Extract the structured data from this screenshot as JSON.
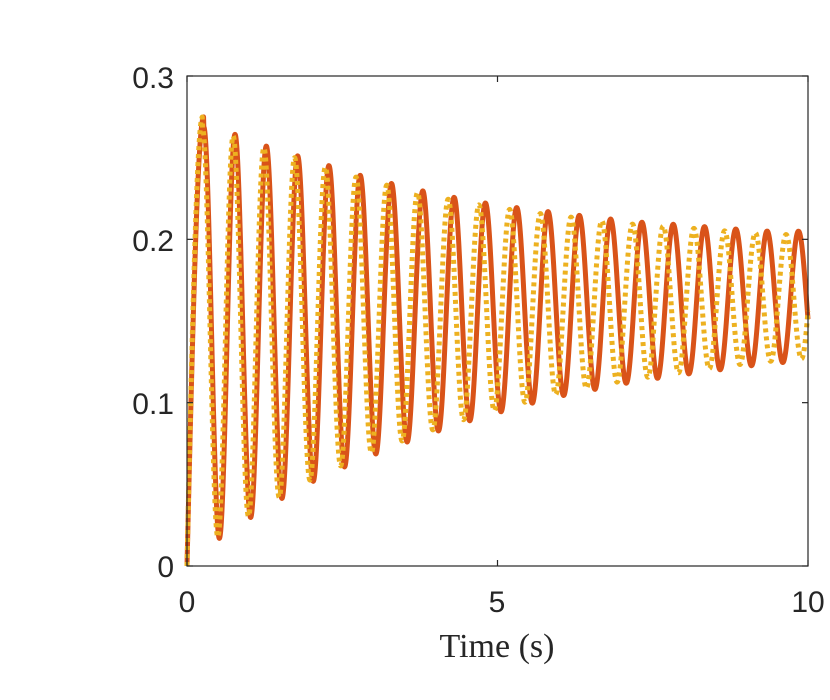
{
  "chart_data": {
    "type": "line",
    "title": "",
    "xlabel": "Time (s)",
    "ylabel": "",
    "xlim": [
      0,
      10
    ],
    "ylim": [
      0,
      0.3
    ],
    "xticks": [
      0,
      5,
      10
    ],
    "xtick_labels": [
      "0",
      "5",
      "10"
    ],
    "yticks": [
      0,
      0.1,
      0.2,
      0.3
    ],
    "ytick_labels": [
      "0",
      "0.1",
      "0.2",
      "0.3"
    ],
    "grid": false,
    "legend": "none",
    "series": [
      {
        "style": "solid",
        "color": "#D95319",
        "mean_level": [
          [
            0,
            0.14
          ],
          [
            2,
            0.15
          ],
          [
            4,
            0.155
          ],
          [
            6,
            0.16
          ],
          [
            8,
            0.163
          ],
          [
            10,
            0.165
          ]
        ],
        "peak_values": [
          [
            0.27,
            0.275
          ],
          [
            0.77,
            0.268
          ],
          [
            1.28,
            0.262
          ],
          [
            1.78,
            0.257
          ],
          [
            2.28,
            0.252
          ],
          [
            2.79,
            0.247
          ],
          [
            3.29,
            0.243
          ],
          [
            3.79,
            0.239
          ],
          [
            4.3,
            0.235
          ],
          [
            4.8,
            0.231
          ],
          [
            5.3,
            0.228
          ],
          [
            5.81,
            0.225
          ],
          [
            6.31,
            0.222
          ],
          [
            6.81,
            0.219
          ],
          [
            7.32,
            0.216
          ],
          [
            7.82,
            0.214
          ],
          [
            8.32,
            0.212
          ],
          [
            8.83,
            0.21
          ],
          [
            9.33,
            0.208
          ],
          [
            9.83,
            0.206
          ]
        ],
        "trough_values": [
          [
            0.52,
            0.02
          ],
          [
            1.02,
            0.034
          ],
          [
            1.53,
            0.047
          ],
          [
            2.03,
            0.058
          ],
          [
            2.53,
            0.068
          ],
          [
            3.04,
            0.077
          ],
          [
            3.54,
            0.085
          ],
          [
            4.04,
            0.092
          ],
          [
            4.55,
            0.098
          ],
          [
            5.05,
            0.103
          ],
          [
            5.55,
            0.108
          ],
          [
            6.06,
            0.112
          ],
          [
            6.56,
            0.115
          ],
          [
            7.06,
            0.118
          ],
          [
            7.57,
            0.12
          ],
          [
            8.07,
            0.122
          ],
          [
            8.57,
            0.124
          ],
          [
            9.08,
            0.126
          ],
          [
            9.58,
            0.127
          ],
          [
            10.0,
            0.125
          ]
        ],
        "period": 0.504
      },
      {
        "style": "dotted",
        "color": "#EDB120",
        "mean_level": [
          [
            0,
            0.14
          ],
          [
            2,
            0.15
          ],
          [
            4,
            0.155
          ],
          [
            6,
            0.16
          ],
          [
            8,
            0.163
          ],
          [
            10,
            0.165
          ]
        ],
        "peak_values": [
          [
            0.25,
            0.275
          ],
          [
            0.75,
            0.268
          ],
          [
            1.25,
            0.262
          ],
          [
            1.74,
            0.257
          ],
          [
            2.24,
            0.252
          ],
          [
            2.73,
            0.247
          ],
          [
            3.23,
            0.243
          ],
          [
            3.72,
            0.239
          ],
          [
            4.22,
            0.235
          ],
          [
            4.71,
            0.231
          ],
          [
            5.21,
            0.228
          ],
          [
            5.7,
            0.225
          ],
          [
            6.2,
            0.222
          ],
          [
            6.69,
            0.219
          ],
          [
            7.19,
            0.216
          ],
          [
            7.68,
            0.214
          ],
          [
            8.18,
            0.212
          ],
          [
            8.67,
            0.21
          ],
          [
            9.17,
            0.208
          ],
          [
            9.66,
            0.206
          ]
        ],
        "trough_values": [
          [
            0.5,
            0.022
          ],
          [
            0.99,
            0.036
          ],
          [
            1.49,
            0.049
          ],
          [
            1.98,
            0.06
          ],
          [
            2.48,
            0.07
          ],
          [
            2.97,
            0.079
          ],
          [
            3.47,
            0.087
          ],
          [
            3.96,
            0.094
          ],
          [
            4.46,
            0.1
          ],
          [
            4.95,
            0.105
          ],
          [
            5.45,
            0.11
          ],
          [
            5.94,
            0.114
          ],
          [
            6.44,
            0.117
          ],
          [
            6.93,
            0.12
          ],
          [
            7.43,
            0.122
          ],
          [
            7.92,
            0.124
          ],
          [
            8.42,
            0.126
          ],
          [
            8.91,
            0.128
          ],
          [
            9.41,
            0.129
          ],
          [
            9.9,
            0.13
          ]
        ],
        "period": 0.4946
      }
    ]
  }
}
